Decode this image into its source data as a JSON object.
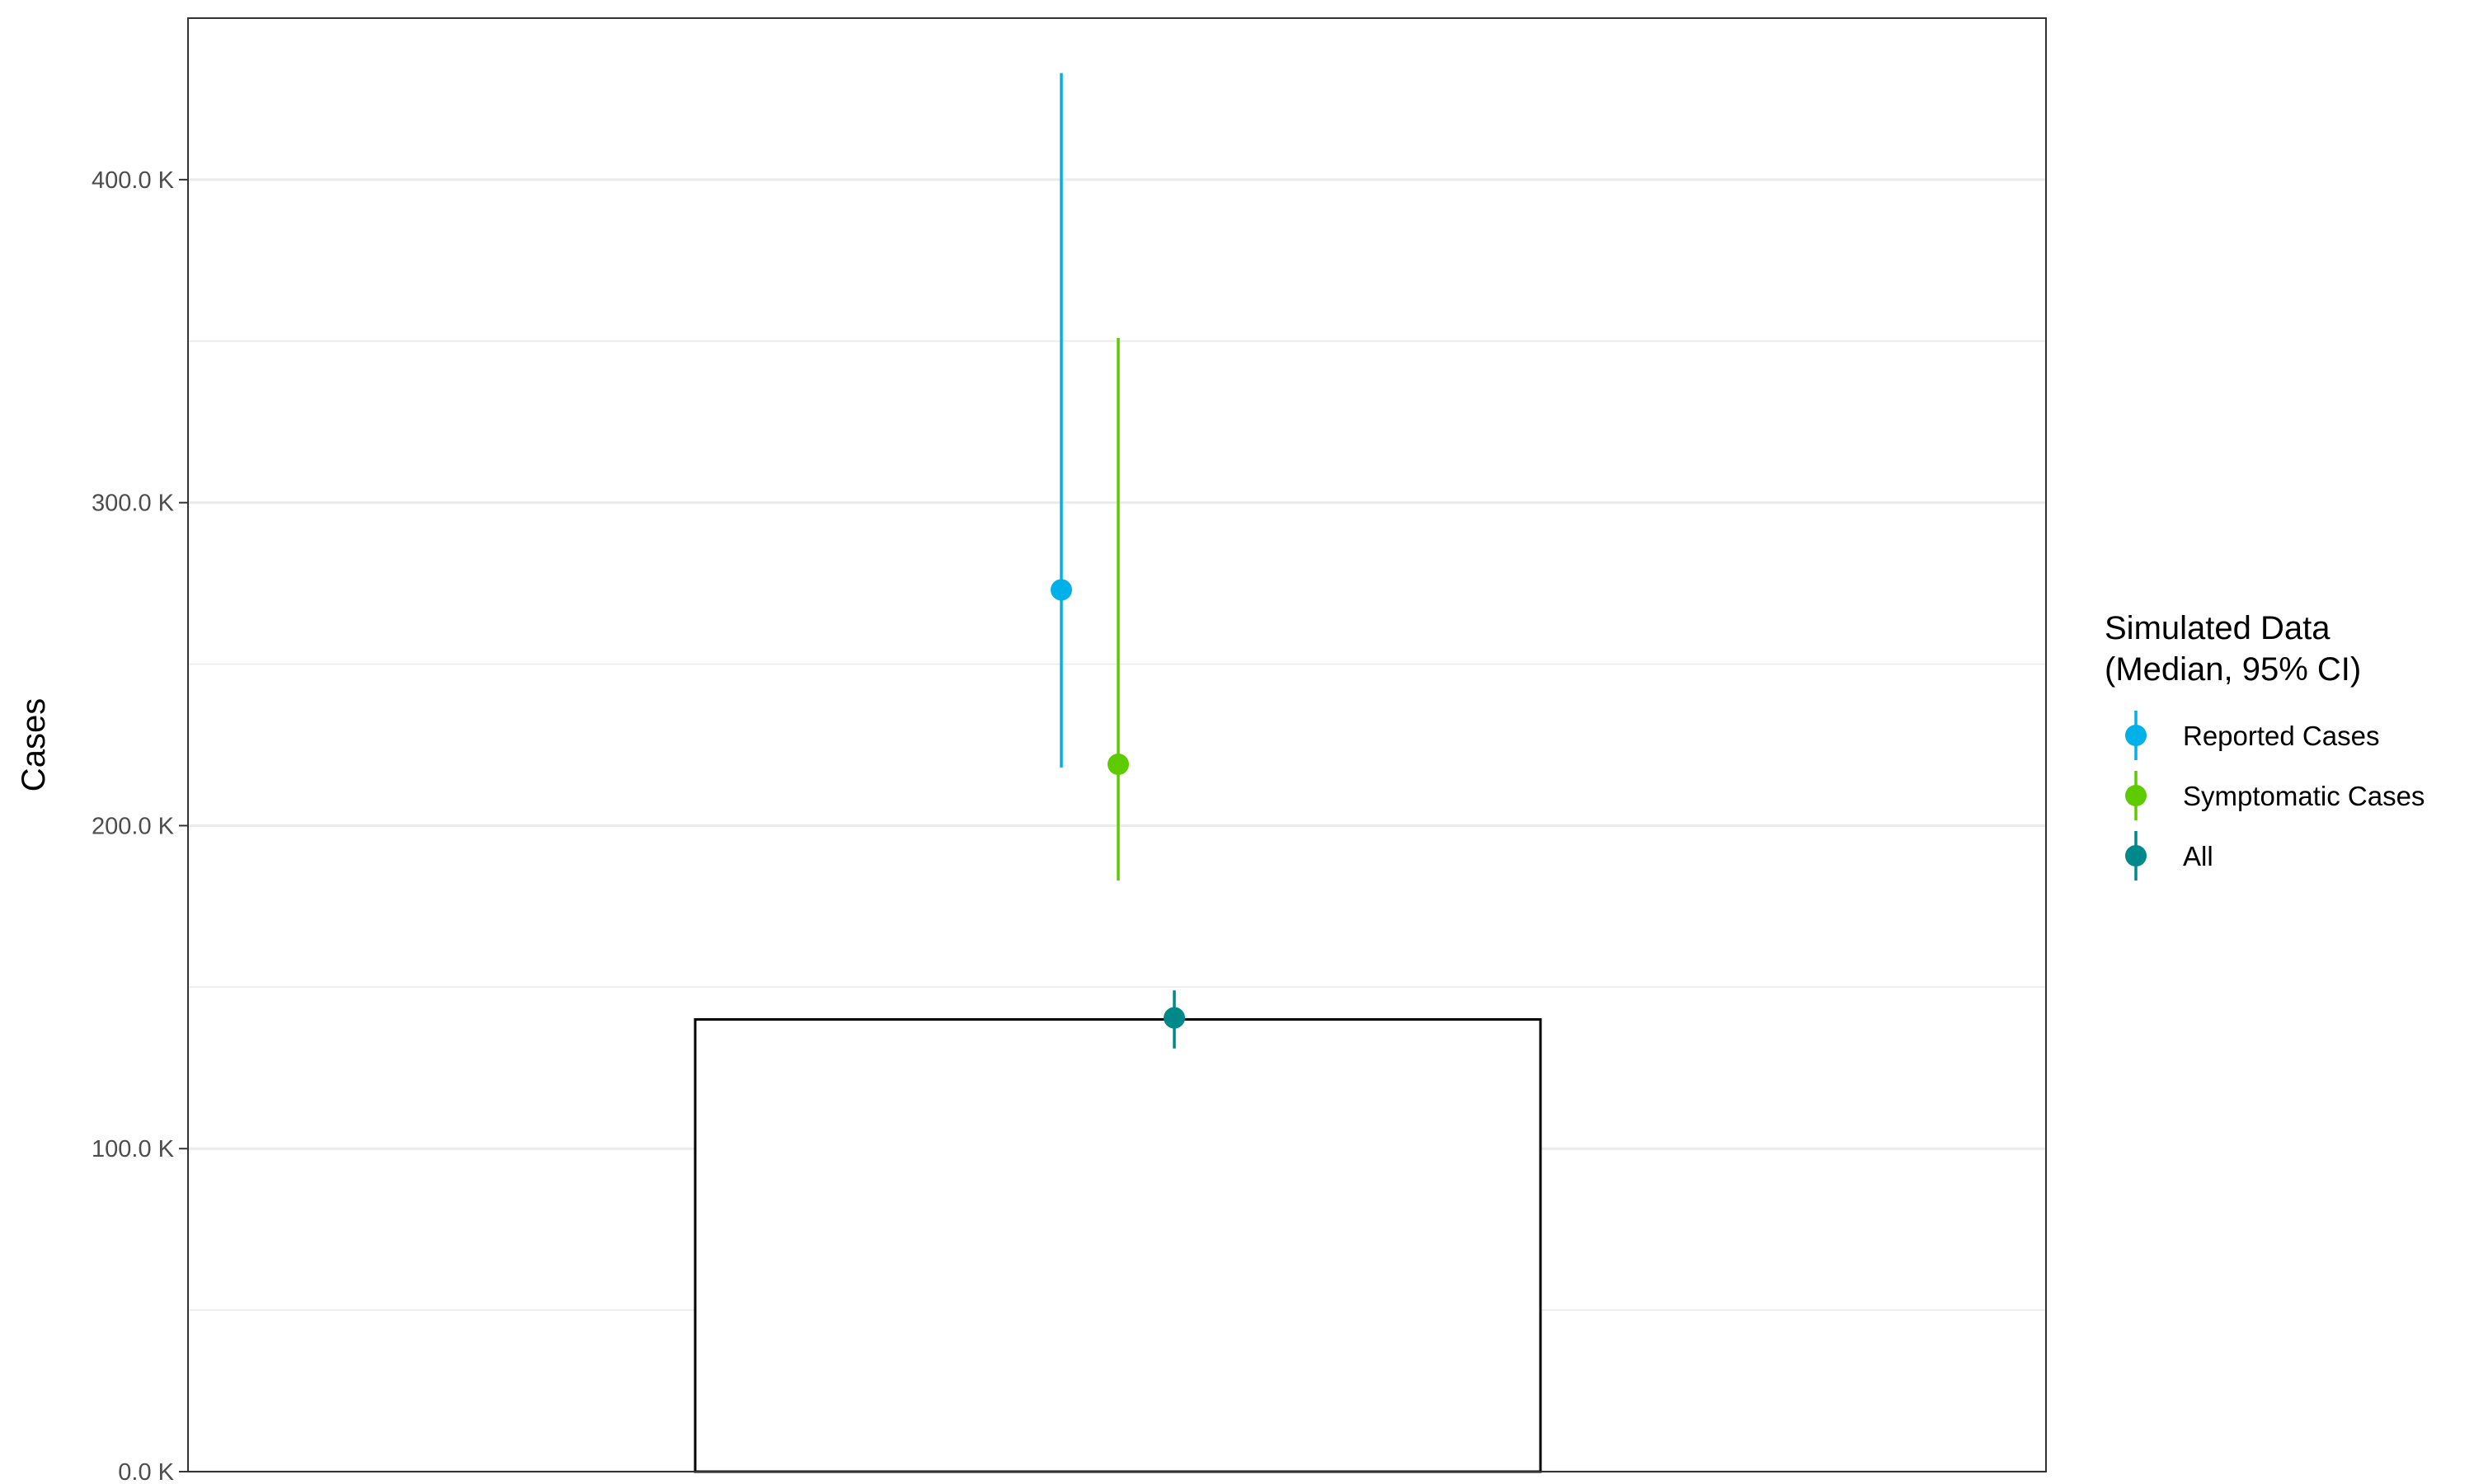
{
  "chart_data": {
    "type": "bar",
    "title": "",
    "xlabel": "",
    "ylabel": "Cases",
    "ylim": [
      0,
      450000
    ],
    "y_ticks": [
      0,
      100000,
      200000,
      300000,
      400000
    ],
    "y_tick_labels": [
      "0.0 K",
      "100.0 K",
      "200.0 K",
      "300.0 K",
      "400.0 K"
    ],
    "grid": true,
    "bar": {
      "value": 140000,
      "fill": "#ffffff",
      "stroke": "#000000"
    },
    "legend": {
      "title_lines": [
        "Simulated Data",
        "(Median, 95% CI)"
      ],
      "placement": "right"
    },
    "series": [
      {
        "name": "Reported Cases",
        "color": "#00b0e8",
        "median": 273000,
        "lower": 218000,
        "upper": 433000
      },
      {
        "name": "Symptomatic Cases",
        "color": "#5ecb00",
        "median": 219000,
        "lower": 183000,
        "upper": 351000
      },
      {
        "name": "All",
        "color": "#00898a",
        "median": 140500,
        "lower": 131000,
        "upper": 149000
      }
    ]
  }
}
